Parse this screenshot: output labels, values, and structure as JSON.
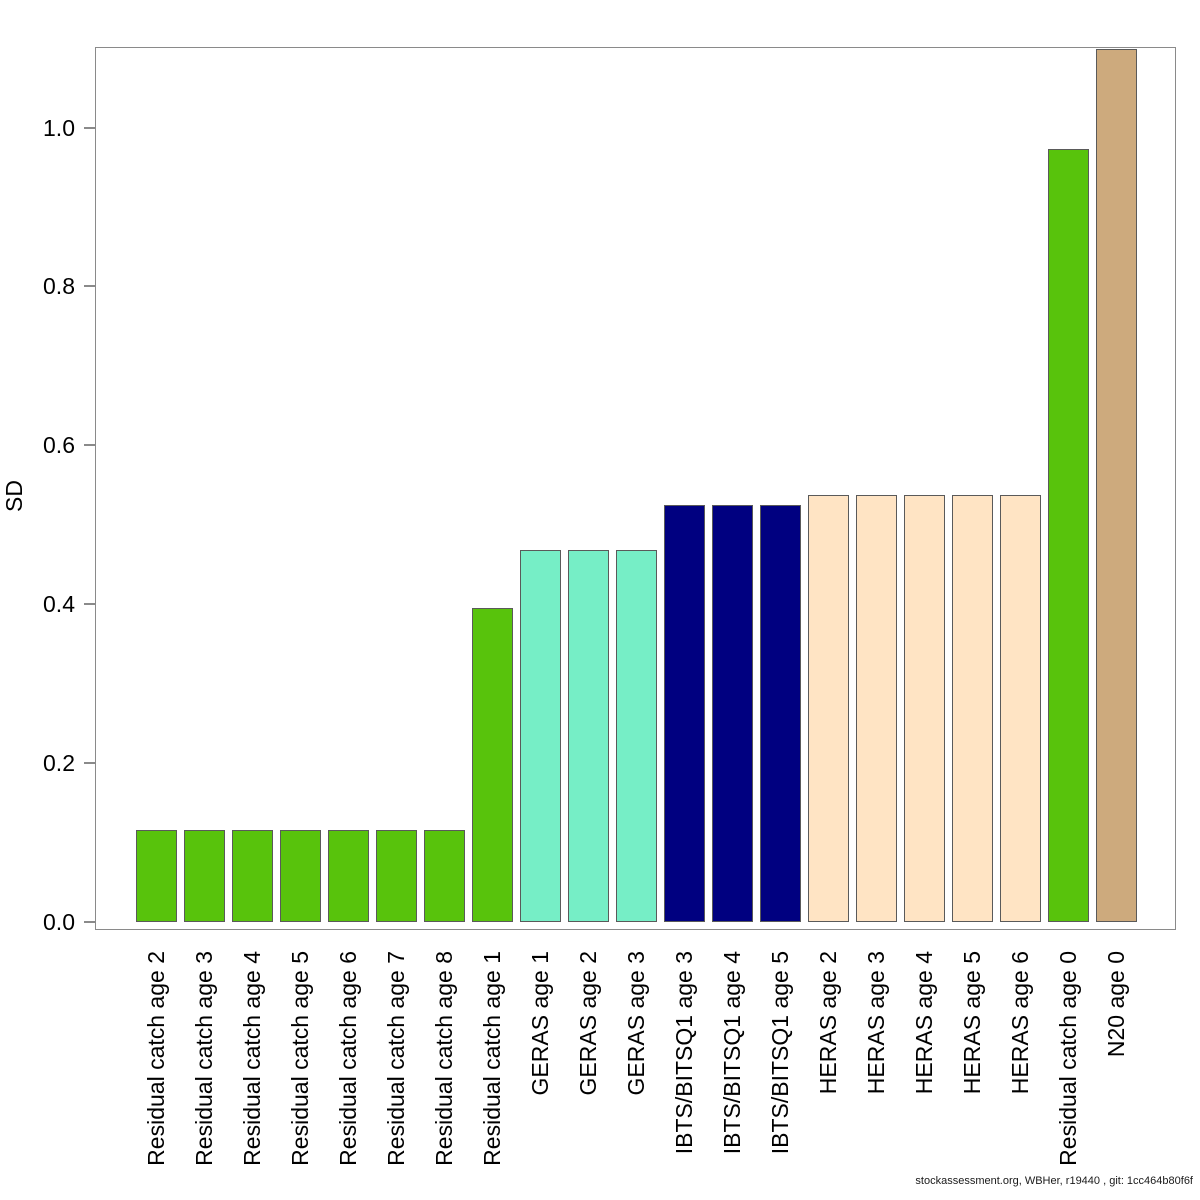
{
  "footer": {
    "text": "stockassessment.org, WBHer, r19440 , git: 1cc464b80f6f"
  },
  "chart_data": {
    "type": "bar",
    "title": "",
    "xlabel": "",
    "ylabel": "SD",
    "ylim": [
      0,
      1.1
    ],
    "grid": false,
    "legend": "none",
    "background_color": "#FFFFFF",
    "axis_color": "#8A8A8A",
    "bar_border_color": "#5A5A5A",
    "palette": {
      "green": "#58C30C",
      "aquamarine": "#76EEC6",
      "navy": "#000080",
      "bisque": "#FFE4C4",
      "tan": "#CDAA7D"
    },
    "yticks": [
      {
        "value": 0.0,
        "label": "0.0"
      },
      {
        "value": 0.2,
        "label": "0.2"
      },
      {
        "value": 0.4,
        "label": "0.4"
      },
      {
        "value": 0.6,
        "label": "0.6"
      },
      {
        "value": 0.8,
        "label": "0.8"
      },
      {
        "value": 1.0,
        "label": "1.0"
      }
    ],
    "bars": [
      {
        "label": "Residual catch age 2",
        "value": 0.116,
        "color": "green"
      },
      {
        "label": "Residual catch age 3",
        "value": 0.116,
        "color": "green"
      },
      {
        "label": "Residual catch age 4",
        "value": 0.116,
        "color": "green"
      },
      {
        "label": "Residual catch age 5",
        "value": 0.116,
        "color": "green"
      },
      {
        "label": "Residual catch age 6",
        "value": 0.116,
        "color": "green"
      },
      {
        "label": "Residual catch age 7",
        "value": 0.116,
        "color": "green"
      },
      {
        "label": "Residual catch age 8",
        "value": 0.116,
        "color": "green"
      },
      {
        "label": "Residual catch age 1",
        "value": 0.396,
        "color": "green"
      },
      {
        "label": "GERAS age 1",
        "value": 0.469,
        "color": "aquamarine"
      },
      {
        "label": "GERAS age 2",
        "value": 0.469,
        "color": "aquamarine"
      },
      {
        "label": "GERAS age 3",
        "value": 0.469,
        "color": "aquamarine"
      },
      {
        "label": "IBTS/BITSQ1 age 3",
        "value": 0.526,
        "color": "navy"
      },
      {
        "label": "IBTS/BITSQ1 age 4",
        "value": 0.526,
        "color": "navy"
      },
      {
        "label": "IBTS/BITSQ1 age 5",
        "value": 0.526,
        "color": "navy"
      },
      {
        "label": "HERAS age 2",
        "value": 0.538,
        "color": "bisque"
      },
      {
        "label": "HERAS age 3",
        "value": 0.538,
        "color": "bisque"
      },
      {
        "label": "HERAS age 4",
        "value": 0.538,
        "color": "bisque"
      },
      {
        "label": "HERAS age 5",
        "value": 0.538,
        "color": "bisque"
      },
      {
        "label": "HERAS age 6",
        "value": 0.538,
        "color": "bisque"
      },
      {
        "label": "Residual catch age 0",
        "value": 0.974,
        "color": "green"
      },
      {
        "label": "N20 age 0",
        "value": 1.1,
        "color": "tan",
        "clipped_at_top": true
      }
    ]
  }
}
